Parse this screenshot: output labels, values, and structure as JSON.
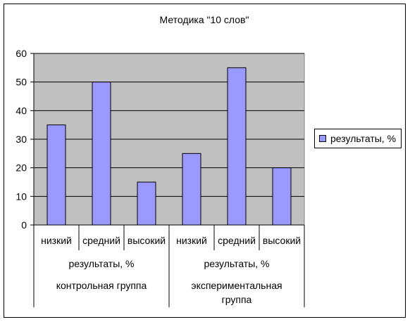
{
  "chart_data": {
    "type": "bar",
    "title": "Методика \"10 слов\"",
    "categories": [
      "низкий",
      "средний",
      "высокий",
      "низкий",
      "средний",
      "высокий"
    ],
    "group_level_1": [
      "результаты, %",
      "результаты, %"
    ],
    "group_level_2": [
      "контрольная группа",
      "экспериментальная группа"
    ],
    "series": [
      {
        "name": "результаты, %",
        "values": [
          35,
          50,
          15,
          25,
          55,
          20
        ]
      }
    ],
    "ylim": [
      0,
      60
    ],
    "yticks": [
      0,
      10,
      20,
      30,
      40,
      50,
      60
    ],
    "grid": true,
    "legend_position": "right",
    "colors": {
      "bar": "#9999ff",
      "plot_background": "#c0c0c0",
      "grid": "#000000"
    }
  }
}
